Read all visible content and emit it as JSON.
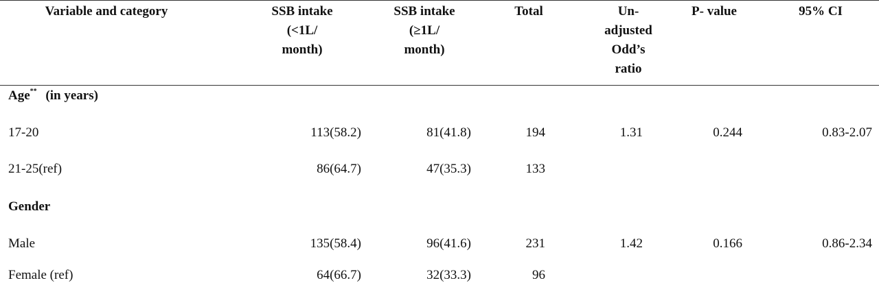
{
  "headers": {
    "variable": "Variable and category",
    "ssb_low": [
      "SSB intake",
      "(<1L/",
      "month)"
    ],
    "ssb_high": [
      "SSB intake",
      "(≥1L/",
      "month)"
    ],
    "total": "Total",
    "odds": [
      "Un-",
      "adjusted",
      "Odd’s",
      "ratio"
    ],
    "pvalue": "P- value",
    "ci": "95% CI"
  },
  "sections": [
    {
      "title": "Age",
      "title_sup": "**",
      "title_suffix": "(in years)",
      "rows": [
        {
          "label": "17-20",
          "low": "113(58.2)",
          "high": "81(41.8)",
          "total": "194",
          "or": "1.31",
          "p": "0.244",
          "ci": "0.83-2.07"
        },
        {
          "label": "21-25(ref)",
          "low": "86(64.7)",
          "high": "47(35.3)",
          "total": "133",
          "or": "",
          "p": "",
          "ci": ""
        }
      ]
    },
    {
      "title": "Gender",
      "title_sup": "",
      "title_suffix": "",
      "rows": [
        {
          "label": "Male",
          "low": "135(58.4)",
          "high": "96(41.6)",
          "total": "231",
          "or": "1.42",
          "p": "0.166",
          "ci": "0.86-2.34"
        },
        {
          "label": "Female (ref)",
          "low": "64(66.7)",
          "high": "32(33.3)",
          "total": "96",
          "or": "",
          "p": "",
          "ci": ""
        }
      ]
    }
  ]
}
